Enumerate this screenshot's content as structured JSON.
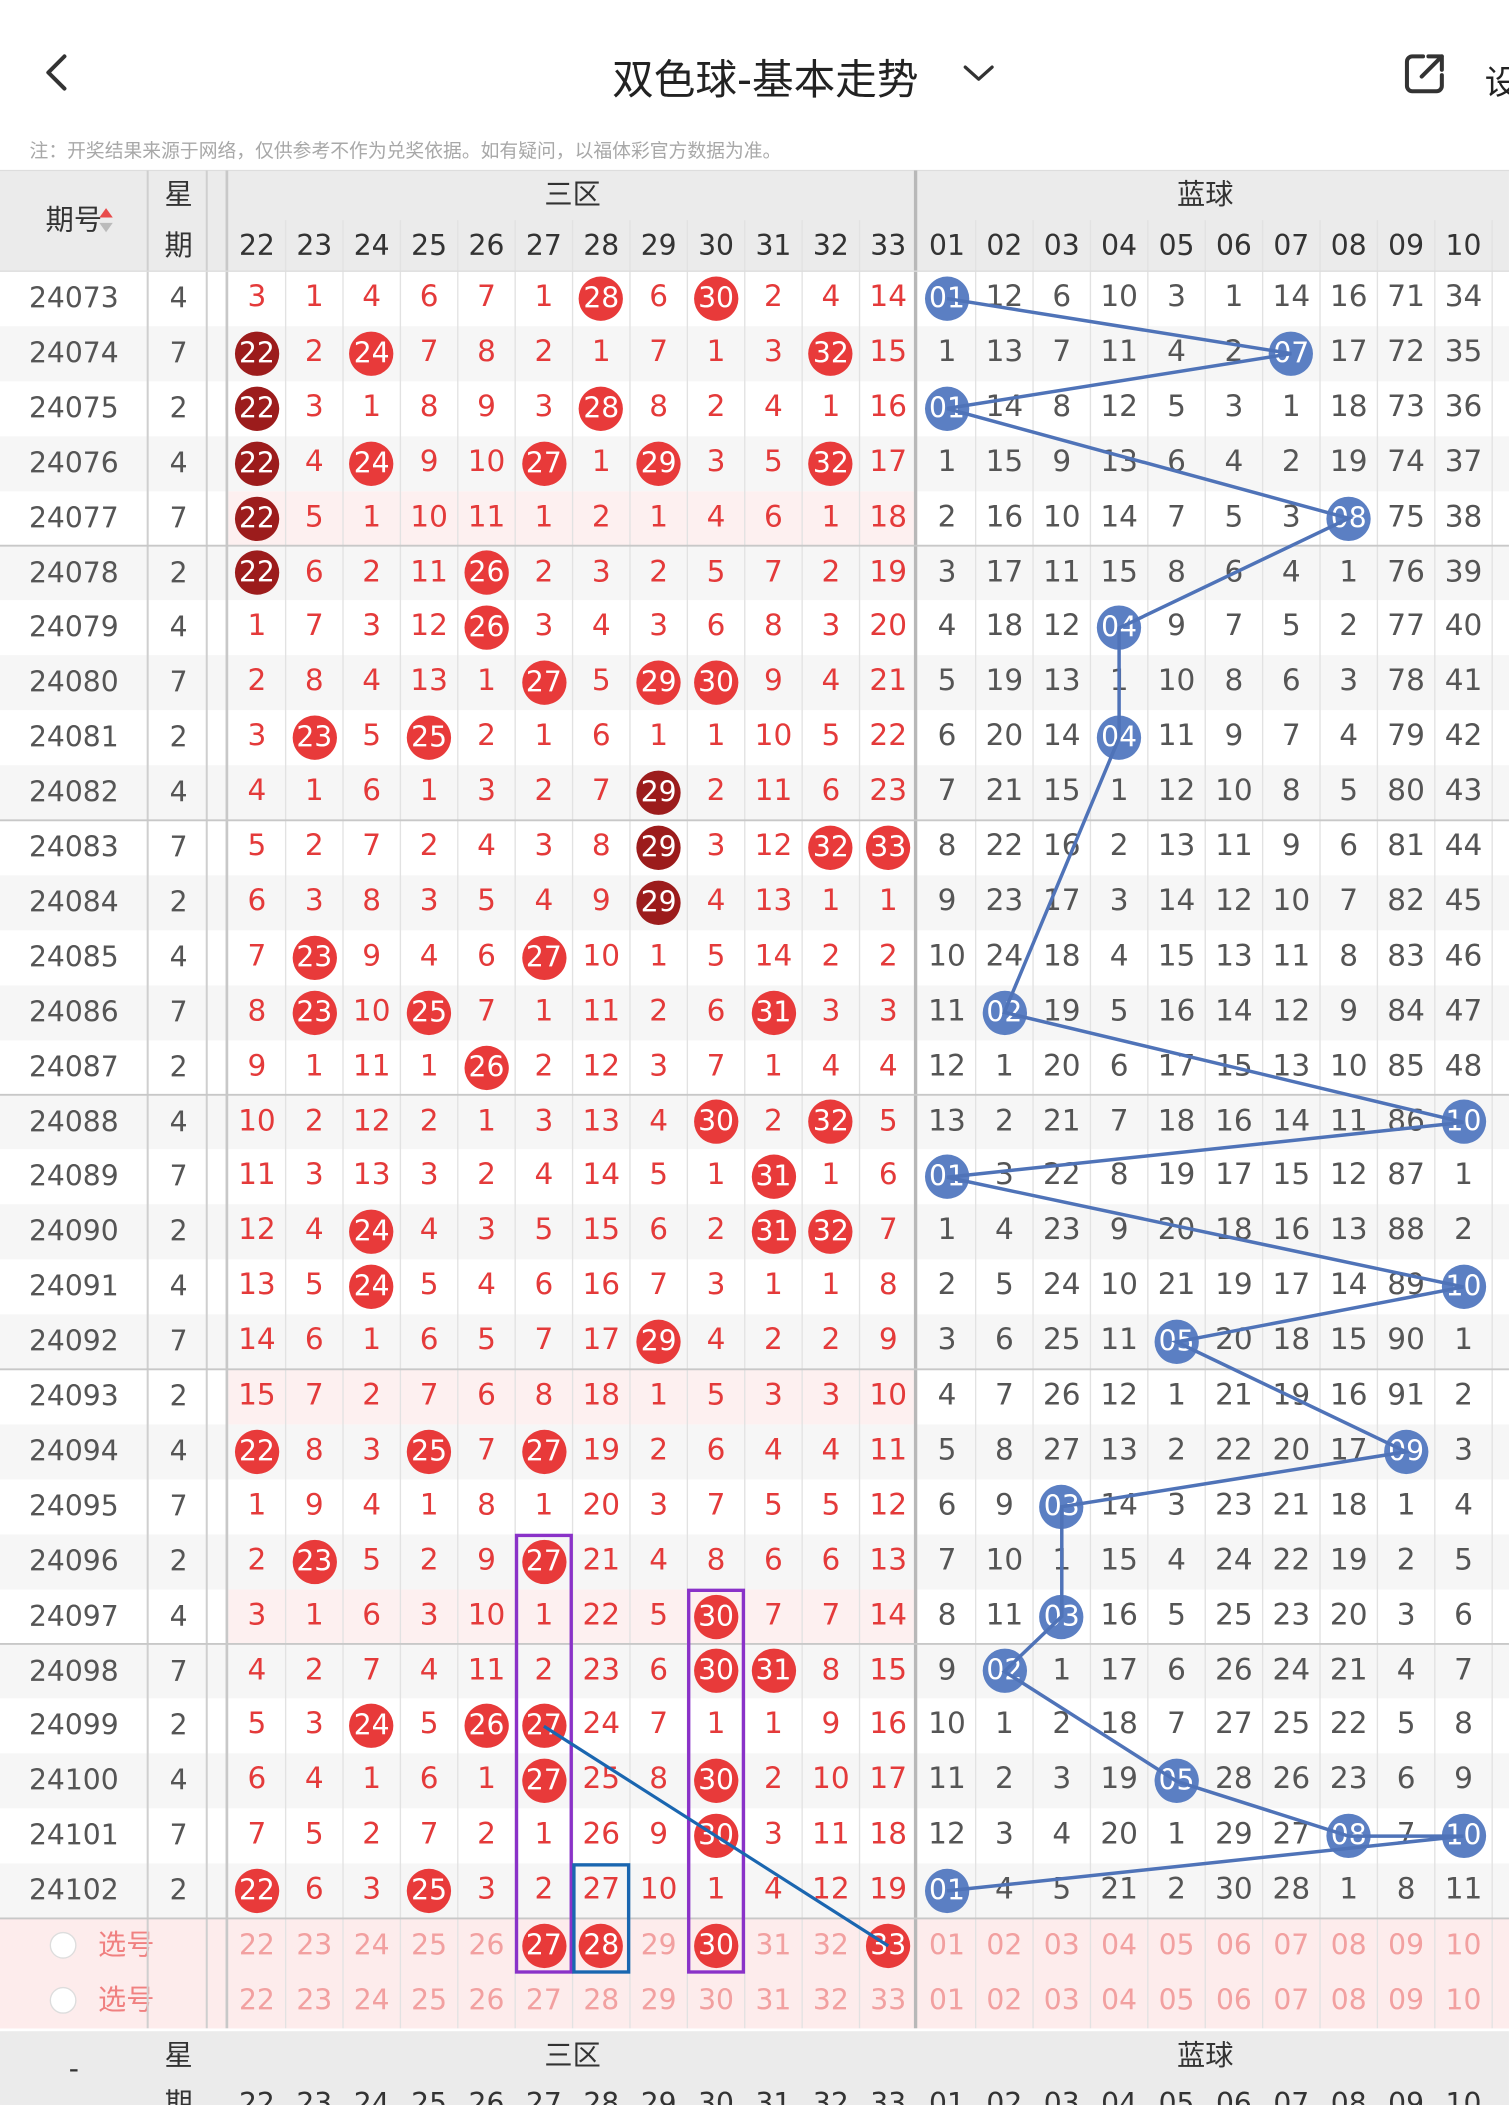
{
  "header": {
    "title": "双色球-基本走势",
    "settings_label": "设",
    "note": "注：开奖结果来源于网络，仅供参考不作为兑奖依据。如有疑问，以福体彩官方数据为准。"
  },
  "table": {
    "issue_label": "期号",
    "week_label_1": "星",
    "week_label_2": "期",
    "zone_label": "三区",
    "blue_label": "蓝球",
    "pick_label": "选号",
    "footer_dash": "-",
    "red_cols": [
      "22",
      "23",
      "24",
      "25",
      "26",
      "27",
      "28",
      "29",
      "30",
      "31",
      "32",
      "33"
    ],
    "blue_cols": [
      "01",
      "02",
      "03",
      "04",
      "05",
      "06",
      "07",
      "08",
      "09",
      "10"
    ],
    "rows": [
      {
        "issue": "24073",
        "w": "4",
        "red": [
          "3",
          "1",
          "4",
          "6",
          "7",
          "1",
          "28",
          "6",
          "30",
          "2",
          "4",
          "14"
        ],
        "blue": [
          "01",
          "12",
          "6",
          "10",
          "3",
          "1",
          "14",
          "16",
          "71",
          "34"
        ]
      },
      {
        "issue": "24074",
        "w": "7",
        "red": [
          "22",
          "2",
          "24",
          "7",
          "8",
          "2",
          "1",
          "7",
          "1",
          "3",
          "32",
          "15"
        ],
        "blue": [
          "1",
          "13",
          "7",
          "11",
          "4",
          "2",
          "07",
          "17",
          "72",
          "35"
        ]
      },
      {
        "issue": "24075",
        "w": "2",
        "red": [
          "22",
          "3",
          "1",
          "8",
          "9",
          "3",
          "28",
          "8",
          "2",
          "4",
          "1",
          "16"
        ],
        "blue": [
          "01",
          "14",
          "8",
          "12",
          "5",
          "3",
          "1",
          "18",
          "73",
          "36"
        ]
      },
      {
        "issue": "24076",
        "w": "4",
        "red": [
          "22",
          "4",
          "24",
          "9",
          "10",
          "27",
          "1",
          "29",
          "3",
          "5",
          "32",
          "17"
        ],
        "blue": [
          "1",
          "15",
          "9",
          "13",
          "6",
          "4",
          "2",
          "19",
          "74",
          "37"
        ]
      },
      {
        "issue": "24077",
        "w": "7",
        "red": [
          "22",
          "5",
          "1",
          "10",
          "11",
          "1",
          "2",
          "1",
          "4",
          "6",
          "1",
          "18"
        ],
        "blue": [
          "2",
          "16",
          "10",
          "14",
          "7",
          "5",
          "3",
          "08",
          "75",
          "38"
        ]
      },
      {
        "issue": "24078",
        "w": "2",
        "red": [
          "22",
          "6",
          "2",
          "11",
          "26",
          "2",
          "3",
          "2",
          "5",
          "7",
          "2",
          "19"
        ],
        "blue": [
          "3",
          "17",
          "11",
          "15",
          "8",
          "6",
          "4",
          "1",
          "76",
          "39"
        ]
      },
      {
        "issue": "24079",
        "w": "4",
        "red": [
          "1",
          "7",
          "3",
          "12",
          "26",
          "3",
          "4",
          "3",
          "6",
          "8",
          "3",
          "20"
        ],
        "blue": [
          "4",
          "18",
          "12",
          "04",
          "9",
          "7",
          "5",
          "2",
          "77",
          "40"
        ]
      },
      {
        "issue": "24080",
        "w": "7",
        "red": [
          "2",
          "8",
          "4",
          "13",
          "1",
          "27",
          "5",
          "29",
          "30",
          "9",
          "4",
          "21"
        ],
        "blue": [
          "5",
          "19",
          "13",
          "1",
          "10",
          "8",
          "6",
          "3",
          "78",
          "41"
        ]
      },
      {
        "issue": "24081",
        "w": "2",
        "red": [
          "3",
          "23",
          "5",
          "25",
          "2",
          "1",
          "6",
          "1",
          "1",
          "10",
          "5",
          "22"
        ],
        "blue": [
          "6",
          "20",
          "14",
          "04",
          "11",
          "9",
          "7",
          "4",
          "79",
          "42"
        ]
      },
      {
        "issue": "24082",
        "w": "4",
        "red": [
          "4",
          "1",
          "6",
          "1",
          "3",
          "2",
          "7",
          "29",
          "2",
          "11",
          "6",
          "23"
        ],
        "blue": [
          "7",
          "21",
          "15",
          "1",
          "12",
          "10",
          "8",
          "5",
          "80",
          "43"
        ]
      },
      {
        "issue": "24083",
        "w": "7",
        "red": [
          "5",
          "2",
          "7",
          "2",
          "4",
          "3",
          "8",
          "29",
          "3",
          "12",
          "32",
          "33"
        ],
        "blue": [
          "8",
          "22",
          "16",
          "2",
          "13",
          "11",
          "9",
          "6",
          "81",
          "44"
        ]
      },
      {
        "issue": "24084",
        "w": "2",
        "red": [
          "6",
          "3",
          "8",
          "3",
          "5",
          "4",
          "9",
          "29",
          "4",
          "13",
          "1",
          "1"
        ],
        "blue": [
          "9",
          "23",
          "17",
          "3",
          "14",
          "12",
          "10",
          "7",
          "82",
          "45"
        ]
      },
      {
        "issue": "24085",
        "w": "4",
        "red": [
          "7",
          "23",
          "9",
          "4",
          "6",
          "27",
          "10",
          "1",
          "5",
          "14",
          "2",
          "2"
        ],
        "blue": [
          "10",
          "24",
          "18",
          "4",
          "15",
          "13",
          "11",
          "8",
          "83",
          "46"
        ]
      },
      {
        "issue": "24086",
        "w": "7",
        "red": [
          "8",
          "23",
          "10",
          "25",
          "7",
          "1",
          "11",
          "2",
          "6",
          "31",
          "3",
          "3"
        ],
        "blue": [
          "11",
          "02",
          "19",
          "5",
          "16",
          "14",
          "12",
          "9",
          "84",
          "47"
        ]
      },
      {
        "issue": "24087",
        "w": "2",
        "red": [
          "9",
          "1",
          "11",
          "1",
          "26",
          "2",
          "12",
          "3",
          "7",
          "1",
          "4",
          "4"
        ],
        "blue": [
          "12",
          "1",
          "20",
          "6",
          "17",
          "15",
          "13",
          "10",
          "85",
          "48"
        ]
      },
      {
        "issue": "24088",
        "w": "4",
        "red": [
          "10",
          "2",
          "12",
          "2",
          "1",
          "3",
          "13",
          "4",
          "30",
          "2",
          "32",
          "5"
        ],
        "blue": [
          "13",
          "2",
          "21",
          "7",
          "18",
          "16",
          "14",
          "11",
          "86",
          "10"
        ]
      },
      {
        "issue": "24089",
        "w": "7",
        "red": [
          "11",
          "3",
          "13",
          "3",
          "2",
          "4",
          "14",
          "5",
          "1",
          "31",
          "1",
          "6"
        ],
        "blue": [
          "01",
          "3",
          "22",
          "8",
          "19",
          "17",
          "15",
          "12",
          "87",
          "1"
        ]
      },
      {
        "issue": "24090",
        "w": "2",
        "red": [
          "12",
          "4",
          "24",
          "4",
          "3",
          "5",
          "15",
          "6",
          "2",
          "31",
          "32",
          "7"
        ],
        "blue": [
          "1",
          "4",
          "23",
          "9",
          "20",
          "18",
          "16",
          "13",
          "88",
          "2"
        ]
      },
      {
        "issue": "24091",
        "w": "4",
        "red": [
          "13",
          "5",
          "24",
          "5",
          "4",
          "6",
          "16",
          "7",
          "3",
          "1",
          "1",
          "8"
        ],
        "blue": [
          "2",
          "5",
          "24",
          "10",
          "21",
          "19",
          "17",
          "14",
          "89",
          "10"
        ]
      },
      {
        "issue": "24092",
        "w": "7",
        "red": [
          "14",
          "6",
          "1",
          "6",
          "5",
          "7",
          "17",
          "29",
          "4",
          "2",
          "2",
          "9"
        ],
        "blue": [
          "3",
          "6",
          "25",
          "11",
          "05",
          "20",
          "18",
          "15",
          "90",
          "1"
        ]
      },
      {
        "issue": "24093",
        "w": "2",
        "red": [
          "15",
          "7",
          "2",
          "7",
          "6",
          "8",
          "18",
          "1",
          "5",
          "3",
          "3",
          "10"
        ],
        "blue": [
          "4",
          "7",
          "26",
          "12",
          "1",
          "21",
          "19",
          "16",
          "91",
          "2"
        ]
      },
      {
        "issue": "24094",
        "w": "4",
        "red": [
          "22",
          "8",
          "3",
          "25",
          "7",
          "27",
          "19",
          "2",
          "6",
          "4",
          "4",
          "11"
        ],
        "blue": [
          "5",
          "8",
          "27",
          "13",
          "2",
          "22",
          "20",
          "17",
          "09",
          "3"
        ]
      },
      {
        "issue": "24095",
        "w": "7",
        "red": [
          "1",
          "9",
          "4",
          "1",
          "8",
          "1",
          "20",
          "3",
          "7",
          "5",
          "5",
          "12"
        ],
        "blue": [
          "6",
          "9",
          "03",
          "14",
          "3",
          "23",
          "21",
          "18",
          "1",
          "4"
        ]
      },
      {
        "issue": "24096",
        "w": "2",
        "red": [
          "2",
          "23",
          "5",
          "2",
          "9",
          "27",
          "21",
          "4",
          "8",
          "6",
          "6",
          "13"
        ],
        "blue": [
          "7",
          "10",
          "1",
          "15",
          "4",
          "24",
          "22",
          "19",
          "2",
          "5"
        ]
      },
      {
        "issue": "24097",
        "w": "4",
        "red": [
          "3",
          "1",
          "6",
          "3",
          "10",
          "1",
          "22",
          "5",
          "30",
          "7",
          "7",
          "14"
        ],
        "blue": [
          "8",
          "11",
          "03",
          "16",
          "5",
          "25",
          "23",
          "20",
          "3",
          "6"
        ]
      },
      {
        "issue": "24098",
        "w": "7",
        "red": [
          "4",
          "2",
          "7",
          "4",
          "11",
          "2",
          "23",
          "6",
          "30",
          "31",
          "8",
          "15"
        ],
        "blue": [
          "9",
          "02",
          "1",
          "17",
          "6",
          "26",
          "24",
          "21",
          "4",
          "7"
        ]
      },
      {
        "issue": "24099",
        "w": "2",
        "red": [
          "5",
          "3",
          "24",
          "5",
          "26",
          "27",
          "24",
          "7",
          "1",
          "1",
          "9",
          "16"
        ],
        "blue": [
          "10",
          "1",
          "2",
          "18",
          "7",
          "27",
          "25",
          "22",
          "5",
          "8"
        ]
      },
      {
        "issue": "24100",
        "w": "4",
        "red": [
          "6",
          "4",
          "1",
          "6",
          "1",
          "27",
          "25",
          "8",
          "30",
          "2",
          "10",
          "17"
        ],
        "blue": [
          "11",
          "2",
          "3",
          "19",
          "05",
          "28",
          "26",
          "23",
          "6",
          "9"
        ]
      },
      {
        "issue": "24101",
        "w": "7",
        "red": [
          "7",
          "5",
          "2",
          "7",
          "2",
          "1",
          "26",
          "9",
          "30",
          "3",
          "11",
          "18"
        ],
        "blue": [
          "12",
          "3",
          "4",
          "20",
          "1",
          "29",
          "27",
          "08",
          "7",
          "10"
        ]
      },
      {
        "issue": "24102",
        "w": "2",
        "red": [
          "22",
          "6",
          "3",
          "25",
          "3",
          "2",
          "27",
          "10",
          "1",
          "4",
          "12",
          "19"
        ],
        "blue": [
          "01",
          "4",
          "5",
          "21",
          "2",
          "30",
          "28",
          "1",
          "8",
          "11"
        ]
      }
    ]
  },
  "colors": {
    "red_ball": "#e83a3a",
    "dark_ball": "#9c1c1c",
    "blue_ball": "#5b7fc3",
    "header_bg": "#ebebeb",
    "pick_bg": "#fdecec",
    "line_blue": "#4f73b8",
    "purple": "#8a32c8",
    "box_blue": "#1a66b0"
  }
}
